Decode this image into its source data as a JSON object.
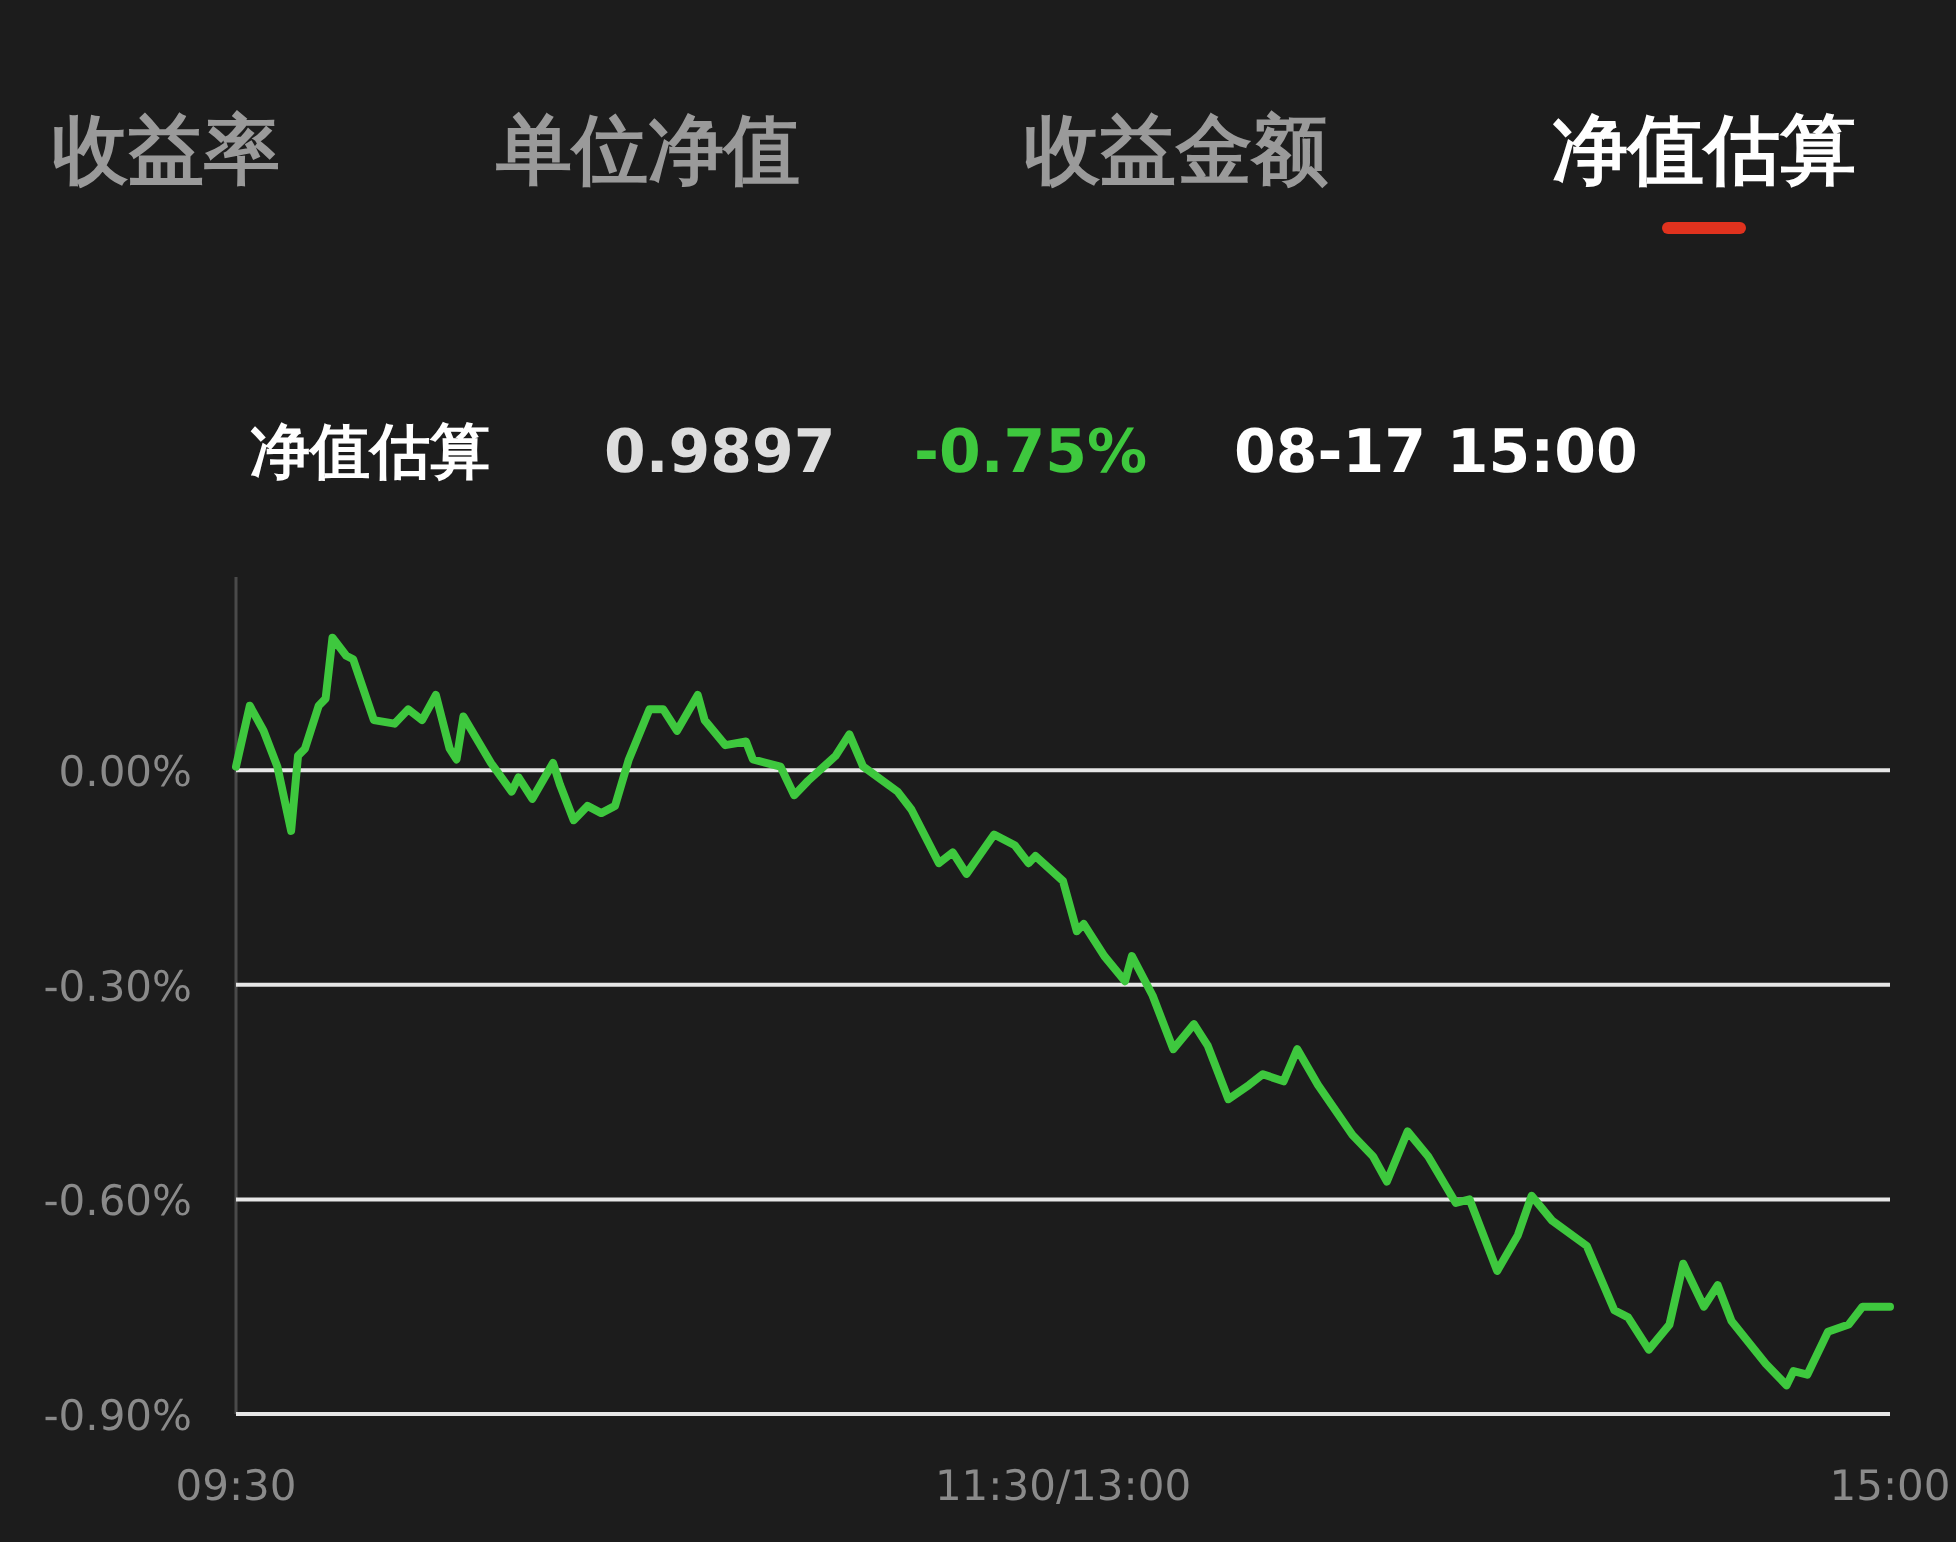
{
  "chart_data": {
    "type": "line",
    "title": "净值估算",
    "annotations": [
      "收益率",
      "单位净值",
      "收益金额",
      "净值估算",
      "0.9897",
      "-0.75%",
      "08-17 15:00"
    ],
    "color": "#3ec83e",
    "grid": "y",
    "categories": [
      "09:30",
      null,
      null,
      null,
      null,
      null,
      null,
      null,
      null,
      null,
      null,
      null,
      null,
      null,
      null,
      null,
      null,
      null,
      null,
      null,
      null,
      null,
      null,
      null,
      null,
      null,
      null,
      null,
      null,
      null,
      null,
      null,
      null,
      null,
      null,
      null,
      null,
      null,
      null,
      null,
      null,
      null,
      null,
      null,
      null,
      null,
      null,
      null,
      null,
      null,
      null,
      null,
      null,
      null,
      null,
      null,
      null,
      null,
      null,
      null,
      null,
      null,
      null,
      null,
      null,
      null,
      null,
      null,
      null,
      null,
      null,
      null,
      null,
      null,
      null,
      null,
      null,
      null,
      null,
      null,
      null,
      null,
      null,
      null,
      null,
      null,
      null,
      null,
      null,
      null,
      null,
      null,
      null,
      null,
      null,
      null,
      null,
      null,
      null,
      null,
      null,
      null,
      null,
      null,
      null,
      null,
      null,
      null,
      null,
      null,
      null,
      null,
      null,
      null,
      null,
      null,
      null,
      null,
      null,
      null,
      "11:30/13:00",
      null,
      null,
      null,
      null,
      null,
      null,
      null,
      null,
      null,
      null,
      null,
      null,
      null,
      null,
      null,
      null,
      null,
      null,
      null,
      null,
      null,
      null,
      null,
      null,
      null,
      null,
      null,
      null,
      null,
      null,
      null,
      null,
      null,
      null,
      null,
      null,
      null,
      null,
      null,
      null,
      null,
      null,
      null,
      null,
      null,
      null,
      null,
      null,
      null,
      null,
      null,
      null,
      null,
      null,
      null,
      null,
      null,
      null,
      null,
      null,
      null,
      null,
      null,
      null,
      null,
      null,
      null,
      null,
      null,
      null,
      null,
      null,
      null,
      null,
      null,
      null,
      null,
      null,
      null,
      null,
      null,
      null,
      null,
      null,
      null,
      null,
      null,
      null,
      null,
      null,
      null,
      null,
      null,
      null,
      null,
      null,
      null,
      null,
      null,
      null,
      null,
      null,
      null,
      null,
      null,
      null,
      null,
      null,
      null,
      null,
      null,
      null,
      null,
      null,
      null,
      null,
      null,
      null,
      null,
      "15:00"
    ],
    "values": [
      0.005,
      null,
      0.09,
      null,
      0.055,
      null,
      0.005,
      null,
      -0.085,
      0.02,
      0.03,
      null,
      0.09,
      0.1,
      0.185,
      null,
      0.16,
      0.155,
      null,
      null,
      0.07,
      null,
      null,
      0.065,
      null,
      0.085,
      null,
      0.07,
      null,
      0.105,
      null,
      0.03,
      0.015,
      0.075,
      null,
      null,
      null,
      0.01,
      null,
      null,
      -0.03,
      -0.01,
      null,
      -0.04,
      null,
      null,
      0.01,
      -0.02,
      null,
      -0.07,
      null,
      -0.05,
      null,
      -0.06,
      null,
      -0.05,
      null,
      0.015,
      null,
      null,
      0.085,
      null,
      0.085,
      null,
      0.055,
      null,
      null,
      0.105,
      0.07,
      null,
      null,
      0.035,
      null,
      null,
      0.04,
      0.015,
      null,
      null,
      null,
      0.005,
      null,
      -0.035,
      null,
      -0.015,
      null,
      null,
      null,
      0.02,
      null,
      0.05,
      null,
      0.005,
      null,
      null,
      null,
      null,
      -0.03,
      null,
      -0.055,
      null,
      null,
      null,
      -0.13,
      null,
      -0.115,
      null,
      -0.145,
      null,
      null,
      null,
      -0.09,
      null,
      null,
      -0.105,
      null,
      -0.13,
      -0.12,
      null,
      null,
      null,
      -0.155,
      null,
      -0.225,
      -0.215,
      null,
      null,
      -0.26,
      null,
      null,
      -0.295,
      -0.26,
      null,
      null,
      -0.315,
      null,
      null,
      -0.39,
      null,
      null,
      -0.355,
      null,
      -0.385,
      null,
      null,
      -0.46,
      null,
      null,
      -0.44,
      null,
      -0.425,
      null,
      null,
      -0.435,
      null,
      -0.39,
      null,
      null,
      -0.44,
      null,
      null,
      null,
      null,
      -0.51,
      null,
      null,
      -0.54,
      null,
      -0.575,
      null,
      null,
      -0.505,
      null,
      null,
      -0.54,
      null,
      null,
      null,
      -0.605,
      null,
      -0.6,
      null,
      null,
      null,
      -0.7,
      null,
      null,
      -0.65,
      null,
      -0.595,
      null,
      null,
      -0.63,
      null,
      null,
      null,
      null,
      -0.665,
      null,
      null,
      null,
      -0.755,
      null,
      -0.765,
      null,
      null,
      -0.81,
      null,
      null,
      -0.775,
      null,
      -0.69,
      null,
      null,
      -0.75,
      null,
      -0.72,
      null,
      -0.77,
      null,
      null,
      null,
      null,
      -0.83,
      null,
      null,
      -0.86,
      -0.84,
      null,
      -0.845,
      null,
      null,
      -0.785,
      null,
      null,
      -0.775,
      null,
      -0.75,
      null,
      null,
      null,
      -0.75
    ],
    "ylim": [
      -0.9,
      0.27
    ],
    "yticks": [
      {
        "value": 0,
        "label": "0.00%"
      },
      {
        "value": -0.3,
        "label": "-0.30%"
      },
      {
        "value": -0.6,
        "label": "-0.60%"
      },
      {
        "value": -0.9,
        "label": "-0.90%"
      }
    ]
  }
}
